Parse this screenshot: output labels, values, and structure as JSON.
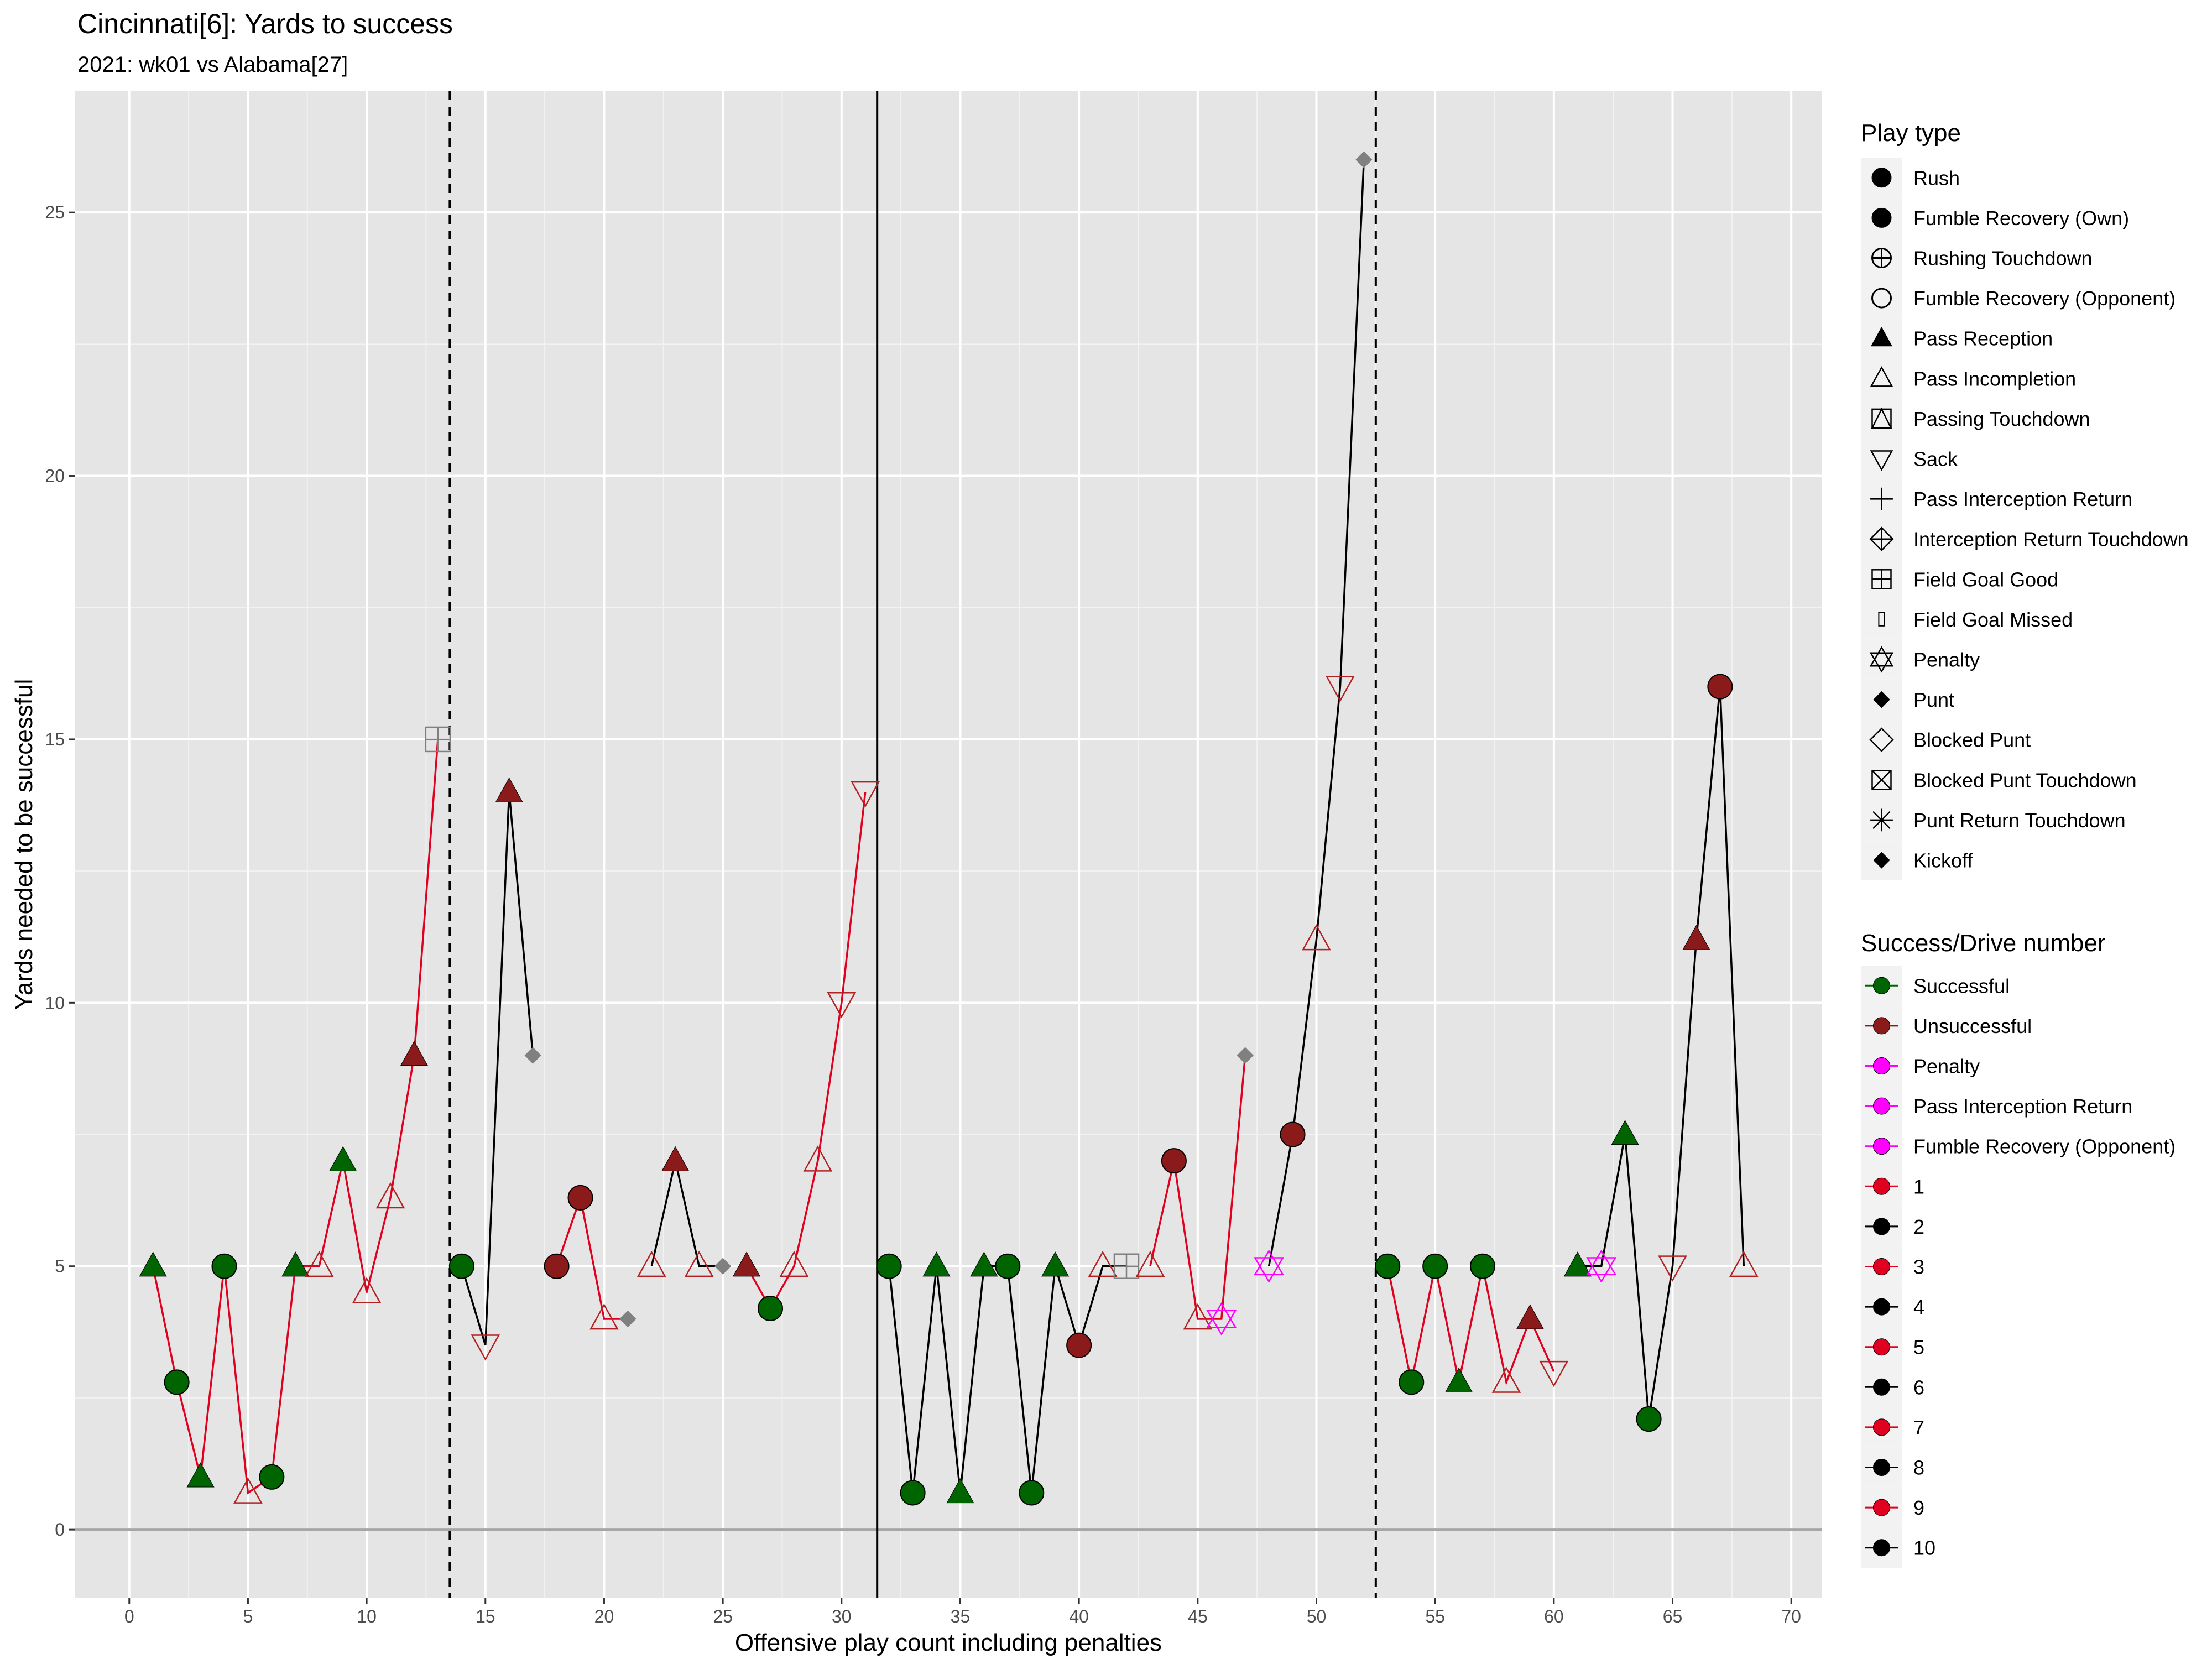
{
  "chart_data": {
    "type": "scatter",
    "title": "Cincinnati[6]: Yards to success",
    "subtitle": "2021: wk01 vs Alabama[27]",
    "xlabel": "Offensive play count including penalties",
    "ylabel": "Yards needed to be successful",
    "xlim": [
      -2.3,
      71.3
    ],
    "ylim": [
      -1.3,
      27.3
    ],
    "x_ticks": [
      0,
      5,
      10,
      15,
      20,
      25,
      30,
      35,
      40,
      45,
      50,
      55,
      60,
      65,
      70
    ],
    "y_ticks": [
      0,
      5,
      10,
      15,
      20,
      25
    ],
    "grid": true,
    "vertical_lines": [
      {
        "x": 13.5,
        "style": "dashed"
      },
      {
        "x": 31.5,
        "style": "solid"
      },
      {
        "x": 52.5,
        "style": "dashed"
      }
    ],
    "colors": {
      "successful": "#006400",
      "unsuccessful": "#8b1a1a",
      "penalty": "#ff00ff",
      "odd_drive": "#e00020",
      "even_drive": "#000000",
      "kick": "#808080",
      "panel_bg": "#e5e5e5"
    },
    "drives": [
      {
        "drive": "1",
        "points": [
          {
            "x": 1,
            "y": 5,
            "type": "Pass Reception",
            "result": "Successful"
          },
          {
            "x": 2,
            "y": 2.8,
            "type": "Rush",
            "result": "Successful"
          },
          {
            "x": 3,
            "y": 1,
            "type": "Pass Reception",
            "result": "Successful"
          },
          {
            "x": 4,
            "y": 5,
            "type": "Rush",
            "result": "Successful"
          },
          {
            "x": 5,
            "y": 0.7,
            "type": "Pass Incompletion",
            "result": "Unsuccessful"
          },
          {
            "x": 6,
            "y": 1,
            "type": "Rush",
            "result": "Successful"
          },
          {
            "x": 7,
            "y": 5,
            "type": "Pass Reception",
            "result": "Successful"
          },
          {
            "x": 8,
            "y": 5,
            "type": "Pass Incompletion",
            "result": "Unsuccessful"
          },
          {
            "x": 9,
            "y": 7,
            "type": "Pass Reception",
            "result": "Successful"
          },
          {
            "x": 10,
            "y": 4.5,
            "type": "Pass Incompletion",
            "result": "Unsuccessful"
          },
          {
            "x": 11,
            "y": 6.3,
            "type": "Pass Incompletion",
            "result": "Unsuccessful"
          },
          {
            "x": 12,
            "y": 9,
            "type": "Pass Reception",
            "result": "Unsuccessful"
          },
          {
            "x": 13,
            "y": 15,
            "type": "Field Goal Good",
            "result": "Kick"
          }
        ]
      },
      {
        "drive": "2",
        "points": [
          {
            "x": 14,
            "y": 5,
            "type": "Rush",
            "result": "Successful"
          },
          {
            "x": 15,
            "y": 3.5,
            "type": "Sack",
            "result": "Unsuccessful"
          },
          {
            "x": 16,
            "y": 14,
            "type": "Pass Reception",
            "result": "Unsuccessful"
          },
          {
            "x": 17,
            "y": 9,
            "type": "Punt",
            "result": "Kick"
          }
        ]
      },
      {
        "drive": "3",
        "points": [
          {
            "x": 18,
            "y": 5,
            "type": "Rush",
            "result": "Unsuccessful"
          },
          {
            "x": 19,
            "y": 6.3,
            "type": "Rush",
            "result": "Unsuccessful"
          },
          {
            "x": 20,
            "y": 4,
            "type": "Pass Incompletion",
            "result": "Unsuccessful"
          },
          {
            "x": 21,
            "y": 4,
            "type": "Punt",
            "result": "Kick"
          }
        ]
      },
      {
        "drive": "4",
        "points": [
          {
            "x": 22,
            "y": 5,
            "type": "Pass Incompletion",
            "result": "Unsuccessful"
          },
          {
            "x": 23,
            "y": 7,
            "type": "Pass Reception",
            "result": "Unsuccessful"
          },
          {
            "x": 24,
            "y": 5,
            "type": "Pass Incompletion",
            "result": "Unsuccessful"
          },
          {
            "x": 25,
            "y": 5,
            "type": "Punt",
            "result": "Kick"
          }
        ]
      },
      {
        "drive": "5",
        "points": [
          {
            "x": 26,
            "y": 5,
            "type": "Pass Reception",
            "result": "Unsuccessful"
          },
          {
            "x": 27,
            "y": 4.2,
            "type": "Rush",
            "result": "Successful"
          },
          {
            "x": 28,
            "y": 5,
            "type": "Pass Incompletion",
            "result": "Unsuccessful"
          },
          {
            "x": 29,
            "y": 7,
            "type": "Pass Incompletion",
            "result": "Unsuccessful"
          },
          {
            "x": 30,
            "y": 10,
            "type": "Sack",
            "result": "Unsuccessful"
          },
          {
            "x": 31,
            "y": 14,
            "type": "Sack",
            "result": "Unsuccessful"
          }
        ]
      },
      {
        "drive": "6",
        "points": [
          {
            "x": 32,
            "y": 5,
            "type": "Rush",
            "result": "Successful"
          },
          {
            "x": 33,
            "y": 0.7,
            "type": "Rush",
            "result": "Successful"
          },
          {
            "x": 34,
            "y": 5,
            "type": "Pass Reception",
            "result": "Successful"
          },
          {
            "x": 35,
            "y": 0.7,
            "type": "Pass Reception",
            "result": "Successful"
          },
          {
            "x": 36,
            "y": 5,
            "type": "Pass Reception",
            "result": "Successful"
          },
          {
            "x": 37,
            "y": 5,
            "type": "Rush",
            "result": "Successful"
          },
          {
            "x": 38,
            "y": 0.7,
            "type": "Rush",
            "result": "Successful"
          },
          {
            "x": 39,
            "y": 5,
            "type": "Pass Reception",
            "result": "Successful"
          },
          {
            "x": 40,
            "y": 3.5,
            "type": "Rush",
            "result": "Unsuccessful"
          },
          {
            "x": 41,
            "y": 5,
            "type": "Pass Incompletion",
            "result": "Unsuccessful"
          },
          {
            "x": 42,
            "y": 5,
            "type": "Field Goal Good",
            "result": "Kick"
          }
        ]
      },
      {
        "drive": "7",
        "points": [
          {
            "x": 43,
            "y": 5,
            "type": "Pass Incompletion",
            "result": "Unsuccessful"
          },
          {
            "x": 44,
            "y": 7,
            "type": "Rush",
            "result": "Unsuccessful"
          },
          {
            "x": 45,
            "y": 4,
            "type": "Pass Incompletion",
            "result": "Unsuccessful"
          },
          {
            "x": 46,
            "y": 4,
            "type": "Penalty",
            "result": "Penalty"
          },
          {
            "x": 47,
            "y": 9,
            "type": "Punt",
            "result": "Kick"
          }
        ]
      },
      {
        "drive": "8",
        "points": [
          {
            "x": 48,
            "y": 5,
            "type": "Penalty",
            "result": "Penalty"
          },
          {
            "x": 49,
            "y": 7.5,
            "type": "Rush",
            "result": "Unsuccessful"
          },
          {
            "x": 50,
            "y": 11.2,
            "type": "Pass Incompletion",
            "result": "Unsuccessful"
          },
          {
            "x": 51,
            "y": 16,
            "type": "Sack",
            "result": "Unsuccessful"
          },
          {
            "x": 52,
            "y": 26,
            "type": "Punt",
            "result": "Kick"
          }
        ]
      },
      {
        "drive": "9",
        "points": [
          {
            "x": 53,
            "y": 5,
            "type": "Rush",
            "result": "Successful"
          },
          {
            "x": 54,
            "y": 2.8,
            "type": "Rush",
            "result": "Successful"
          },
          {
            "x": 55,
            "y": 5,
            "type": "Rush",
            "result": "Successful"
          },
          {
            "x": 56,
            "y": 2.8,
            "type": "Pass Reception",
            "result": "Successful"
          },
          {
            "x": 57,
            "y": 5,
            "type": "Rush",
            "result": "Successful"
          },
          {
            "x": 58,
            "y": 2.8,
            "type": "Pass Incompletion",
            "result": "Unsuccessful"
          },
          {
            "x": 59,
            "y": 4,
            "type": "Pass Reception",
            "result": "Unsuccessful"
          },
          {
            "x": 60,
            "y": 3,
            "type": "Sack",
            "result": "Unsuccessful"
          }
        ]
      },
      {
        "drive": "10",
        "points": [
          {
            "x": 61,
            "y": 5,
            "type": "Pass Reception",
            "result": "Successful"
          },
          {
            "x": 62,
            "y": 5,
            "type": "Penalty",
            "result": "Penalty"
          },
          {
            "x": 63,
            "y": 7.5,
            "type": "Pass Reception",
            "result": "Successful"
          },
          {
            "x": 64,
            "y": 2.1,
            "type": "Rush",
            "result": "Successful"
          },
          {
            "x": 65,
            "y": 5,
            "type": "Sack",
            "result": "Unsuccessful"
          },
          {
            "x": 66,
            "y": 11.2,
            "type": "Pass Reception",
            "result": "Unsuccessful"
          },
          {
            "x": 67,
            "y": 16,
            "type": "Rush",
            "result": "Unsuccessful"
          },
          {
            "x": 68,
            "y": 5,
            "type": "Pass Incompletion",
            "result": "Unsuccessful"
          }
        ]
      }
    ],
    "legend_play_type": {
      "title": "Play type",
      "placement": "right",
      "items": [
        {
          "label": "Rush",
          "icon": "filled-circle"
        },
        {
          "label": "Fumble Recovery (Own)",
          "icon": "filled-circle"
        },
        {
          "label": "Rushing Touchdown",
          "icon": "circle-plus"
        },
        {
          "label": "Fumble Recovery (Opponent)",
          "icon": "open-circle"
        },
        {
          "label": "Pass Reception",
          "icon": "filled-triangle"
        },
        {
          "label": "Pass Incompletion",
          "icon": "open-triangle"
        },
        {
          "label": "Passing Touchdown",
          "icon": "square-triangle"
        },
        {
          "label": "Sack",
          "icon": "open-triangle-down"
        },
        {
          "label": "Pass Interception Return",
          "icon": "plus"
        },
        {
          "label": "Interception Return Touchdown",
          "icon": "diamond-plus"
        },
        {
          "label": "Field Goal Good",
          "icon": "square-plus"
        },
        {
          "label": "Field Goal Missed",
          "icon": "small-rect"
        },
        {
          "label": "Penalty",
          "icon": "star-of-david"
        },
        {
          "label": "Punt",
          "icon": "filled-diamond"
        },
        {
          "label": "Blocked Punt",
          "icon": "open-diamond"
        },
        {
          "label": "Blocked Punt Touchdown",
          "icon": "square-x"
        },
        {
          "label": "Punt Return Touchdown",
          "icon": "asterisk"
        },
        {
          "label": "Kickoff",
          "icon": "filled-diamond"
        }
      ]
    },
    "legend_success": {
      "title": "Success/Drive number",
      "placement": "right",
      "items": [
        {
          "label": "Successful",
          "color": "#006400"
        },
        {
          "label": "Unsuccessful",
          "color": "#8b1a1a"
        },
        {
          "label": "Penalty",
          "color": "#ff00ff"
        },
        {
          "label": "Pass Interception Return",
          "color": "#ff00ff"
        },
        {
          "label": "Fumble Recovery (Opponent)",
          "color": "#ff00ff"
        },
        {
          "label": "1",
          "color": "#e00020"
        },
        {
          "label": "2",
          "color": "#000000"
        },
        {
          "label": "3",
          "color": "#e00020"
        },
        {
          "label": "4",
          "color": "#000000"
        },
        {
          "label": "5",
          "color": "#e00020"
        },
        {
          "label": "6",
          "color": "#000000"
        },
        {
          "label": "7",
          "color": "#e00020"
        },
        {
          "label": "8",
          "color": "#000000"
        },
        {
          "label": "9",
          "color": "#e00020"
        },
        {
          "label": "10",
          "color": "#000000"
        }
      ]
    }
  }
}
